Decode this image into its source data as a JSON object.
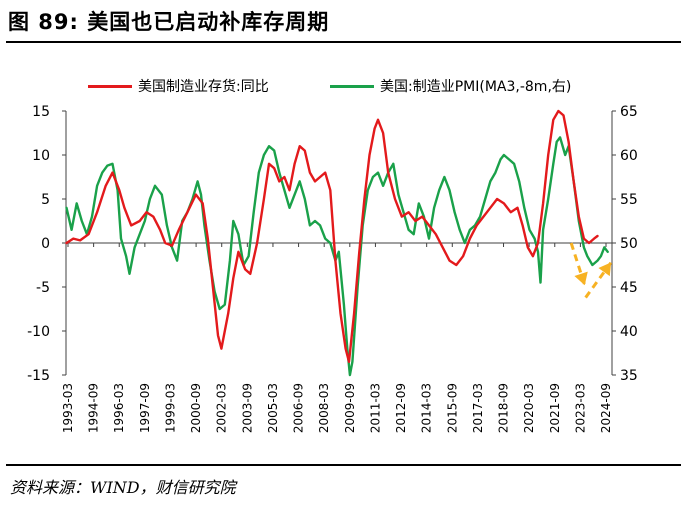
{
  "header": {
    "figure_title": "图 89:  美国也已启动补库存周期"
  },
  "footer": {
    "source": "资料来源：WIND，财信研究院"
  },
  "colors": {
    "series_inventory": "#e31a1c",
    "series_pmi": "#1aa14a",
    "arrow": "#f7b223",
    "axis": "#404040"
  },
  "chart_data": {
    "type": "line",
    "title": "",
    "x_tick_labels": [
      "1993-03",
      "1994-09",
      "1996-03",
      "1997-09",
      "1999-03",
      "2000-09",
      "2002-03",
      "2003-09",
      "2005-03",
      "2006-09",
      "2008-03",
      "2009-09",
      "2011-03",
      "2012-09",
      "2014-03",
      "2015-09",
      "2017-03",
      "2018-09",
      "2020-03",
      "2021-09",
      "2023-03",
      "2024-09"
    ],
    "x_range": [
      1993.17,
      2025.25
    ],
    "y_left": {
      "min": -15,
      "max": 15,
      "ticks": [
        15,
        10,
        5,
        0,
        -5,
        -10,
        -15
      ],
      "tick_labels": [
        "15",
        "10",
        "5",
        "0",
        "-5",
        "-10",
        "-15"
      ]
    },
    "y_right": {
      "min": 35,
      "max": 65,
      "ticks": [
        65,
        60,
        55,
        50,
        45,
        40,
        35
      ],
      "tick_labels": [
        "65",
        "60",
        "55",
        "50",
        "45",
        "40",
        "35"
      ]
    },
    "series": [
      {
        "name": "美国制造业存货:同比",
        "axis": "left",
        "points": [
          [
            1993.2,
            0.0
          ],
          [
            1993.6,
            0.5
          ],
          [
            1994.0,
            0.3
          ],
          [
            1994.5,
            1.0
          ],
          [
            1995.0,
            3.5
          ],
          [
            1995.5,
            6.5
          ],
          [
            1995.9,
            8.0
          ],
          [
            1996.3,
            6.0
          ],
          [
            1996.6,
            4.0
          ],
          [
            1997.0,
            2.0
          ],
          [
            1997.5,
            2.5
          ],
          [
            1997.9,
            3.5
          ],
          [
            1998.3,
            3.0
          ],
          [
            1998.7,
            1.5
          ],
          [
            1999.0,
            0.0
          ],
          [
            1999.4,
            -0.3
          ],
          [
            1999.8,
            1.5
          ],
          [
            2000.3,
            3.5
          ],
          [
            2000.8,
            5.5
          ],
          [
            2001.2,
            4.5
          ],
          [
            2001.5,
            0.5
          ],
          [
            2001.8,
            -5.0
          ],
          [
            2002.1,
            -10.5
          ],
          [
            2002.3,
            -12.0
          ],
          [
            2002.7,
            -8.0
          ],
          [
            2003.0,
            -4.0
          ],
          [
            2003.3,
            -1.0
          ],
          [
            2003.7,
            -3.0
          ],
          [
            2004.0,
            -3.5
          ],
          [
            2004.4,
            0.0
          ],
          [
            2004.8,
            5.0
          ],
          [
            2005.1,
            9.0
          ],
          [
            2005.4,
            8.5
          ],
          [
            2005.7,
            7.0
          ],
          [
            2006.0,
            7.5
          ],
          [
            2006.3,
            6.0
          ],
          [
            2006.6,
            9.0
          ],
          [
            2006.9,
            11.0
          ],
          [
            2007.2,
            10.5
          ],
          [
            2007.5,
            8.0
          ],
          [
            2007.8,
            7.0
          ],
          [
            2008.1,
            7.5
          ],
          [
            2008.4,
            8.0
          ],
          [
            2008.7,
            6.0
          ],
          [
            2009.0,
            -2.0
          ],
          [
            2009.3,
            -8.0
          ],
          [
            2009.6,
            -12.0
          ],
          [
            2009.8,
            -13.5
          ],
          [
            2010.1,
            -8.0
          ],
          [
            2010.4,
            -1.0
          ],
          [
            2010.7,
            5.0
          ],
          [
            2011.0,
            10.0
          ],
          [
            2011.3,
            13.0
          ],
          [
            2011.5,
            14.0
          ],
          [
            2011.8,
            12.5
          ],
          [
            2012.1,
            8.0
          ],
          [
            2012.5,
            5.0
          ],
          [
            2012.9,
            3.0
          ],
          [
            2013.3,
            3.5
          ],
          [
            2013.7,
            2.5
          ],
          [
            2014.1,
            3.0
          ],
          [
            2014.5,
            2.0
          ],
          [
            2014.9,
            1.0
          ],
          [
            2015.3,
            -0.5
          ],
          [
            2015.7,
            -2.0
          ],
          [
            2016.1,
            -2.5
          ],
          [
            2016.5,
            -1.5
          ],
          [
            2016.9,
            0.5
          ],
          [
            2017.3,
            2.0
          ],
          [
            2017.7,
            3.0
          ],
          [
            2018.1,
            4.0
          ],
          [
            2018.5,
            5.0
          ],
          [
            2018.9,
            4.5
          ],
          [
            2019.3,
            3.5
          ],
          [
            2019.7,
            4.0
          ],
          [
            2020.0,
            2.0
          ],
          [
            2020.3,
            -0.5
          ],
          [
            2020.6,
            -1.5
          ],
          [
            2020.9,
            0.0
          ],
          [
            2021.2,
            4.5
          ],
          [
            2021.5,
            10.0
          ],
          [
            2021.8,
            14.0
          ],
          [
            2022.1,
            15.0
          ],
          [
            2022.4,
            14.5
          ],
          [
            2022.7,
            11.5
          ],
          [
            2023.0,
            7.0
          ],
          [
            2023.3,
            3.0
          ],
          [
            2023.6,
            0.5
          ],
          [
            2023.9,
            0.0
          ],
          [
            2024.2,
            0.5
          ],
          [
            2024.4,
            0.8
          ]
        ]
      },
      {
        "name": "美国:制造业PMI(MA3,-8m,右)",
        "axis": "right",
        "points": [
          [
            1993.2,
            54.0
          ],
          [
            1993.5,
            51.5
          ],
          [
            1993.8,
            54.5
          ],
          [
            1994.1,
            52.5
          ],
          [
            1994.4,
            51.0
          ],
          [
            1994.7,
            53.0
          ],
          [
            1995.0,
            56.5
          ],
          [
            1995.3,
            58.0
          ],
          [
            1995.6,
            58.8
          ],
          [
            1995.9,
            59.0
          ],
          [
            1996.2,
            56.0
          ],
          [
            1996.4,
            50.5
          ],
          [
            1996.7,
            48.5
          ],
          [
            1996.9,
            46.5
          ],
          [
            1997.2,
            49.5
          ],
          [
            1997.5,
            51.0
          ],
          [
            1997.8,
            52.5
          ],
          [
            1998.1,
            55.0
          ],
          [
            1998.4,
            56.5
          ],
          [
            1998.8,
            55.5
          ],
          [
            1999.1,
            52.0
          ],
          [
            1999.4,
            49.5
          ],
          [
            1999.7,
            48.0
          ],
          [
            2000.0,
            52.5
          ],
          [
            2000.3,
            53.5
          ],
          [
            2000.6,
            55.0
          ],
          [
            2000.9,
            57.0
          ],
          [
            2001.1,
            55.5
          ],
          [
            2001.3,
            52.0
          ],
          [
            2001.6,
            48.0
          ],
          [
            2001.9,
            44.5
          ],
          [
            2002.2,
            42.5
          ],
          [
            2002.5,
            43.0
          ],
          [
            2002.8,
            48.0
          ],
          [
            2003.0,
            52.5
          ],
          [
            2003.3,
            51.0
          ],
          [
            2003.6,
            47.5
          ],
          [
            2003.9,
            48.5
          ],
          [
            2004.2,
            53.5
          ],
          [
            2004.5,
            58.0
          ],
          [
            2004.8,
            60.0
          ],
          [
            2005.1,
            61.0
          ],
          [
            2005.4,
            60.5
          ],
          [
            2005.7,
            58.0
          ],
          [
            2006.0,
            56.0
          ],
          [
            2006.3,
            54.0
          ],
          [
            2006.6,
            55.5
          ],
          [
            2006.9,
            57.0
          ],
          [
            2007.2,
            55.0
          ],
          [
            2007.5,
            52.0
          ],
          [
            2007.8,
            52.5
          ],
          [
            2008.1,
            52.0
          ],
          [
            2008.4,
            50.5
          ],
          [
            2008.7,
            50.0
          ],
          [
            2009.0,
            48.0
          ],
          [
            2009.2,
            49.0
          ],
          [
            2009.5,
            43.0
          ],
          [
            2009.7,
            38.0
          ],
          [
            2009.85,
            35.0
          ],
          [
            2010.0,
            36.5
          ],
          [
            2010.3,
            45.0
          ],
          [
            2010.6,
            52.0
          ],
          [
            2010.9,
            56.0
          ],
          [
            2011.2,
            57.5
          ],
          [
            2011.5,
            58.0
          ],
          [
            2011.8,
            56.5
          ],
          [
            2012.1,
            58.0
          ],
          [
            2012.4,
            59.0
          ],
          [
            2012.7,
            55.5
          ],
          [
            2013.0,
            53.5
          ],
          [
            2013.3,
            51.5
          ],
          [
            2013.6,
            51.0
          ],
          [
            2013.9,
            54.5
          ],
          [
            2014.2,
            53.0
          ],
          [
            2014.5,
            50.5
          ],
          [
            2014.8,
            54.0
          ],
          [
            2015.1,
            56.0
          ],
          [
            2015.4,
            57.5
          ],
          [
            2015.7,
            56.0
          ],
          [
            2016.0,
            53.5
          ],
          [
            2016.3,
            51.5
          ],
          [
            2016.6,
            50.0
          ],
          [
            2016.9,
            51.5
          ],
          [
            2017.2,
            52.0
          ],
          [
            2017.5,
            53.0
          ],
          [
            2017.8,
            55.0
          ],
          [
            2018.1,
            57.0
          ],
          [
            2018.4,
            58.0
          ],
          [
            2018.7,
            59.5
          ],
          [
            2018.9,
            60.0
          ],
          [
            2019.2,
            59.5
          ],
          [
            2019.5,
            59.0
          ],
          [
            2019.8,
            57.0
          ],
          [
            2020.1,
            54.0
          ],
          [
            2020.4,
            51.5
          ],
          [
            2020.7,
            50.5
          ],
          [
            2020.9,
            49.0
          ],
          [
            2021.05,
            45.5
          ],
          [
            2021.2,
            51.5
          ],
          [
            2021.5,
            55.0
          ],
          [
            2021.8,
            59.0
          ],
          [
            2022.0,
            61.5
          ],
          [
            2022.2,
            62.0
          ],
          [
            2022.5,
            60.0
          ],
          [
            2022.7,
            61.0
          ],
          [
            2023.0,
            57.0
          ],
          [
            2023.3,
            52.5
          ],
          [
            2023.6,
            49.5
          ],
          [
            2023.8,
            48.5
          ],
          [
            2024.1,
            47.5
          ],
          [
            2024.4,
            48.0
          ],
          [
            2024.6,
            48.5
          ],
          [
            2024.8,
            49.5
          ],
          [
            2025.0,
            49.0
          ]
        ]
      }
    ],
    "annotations": [
      "downward arrow 2023-2024",
      "upward arrow 2024-2025"
    ]
  }
}
